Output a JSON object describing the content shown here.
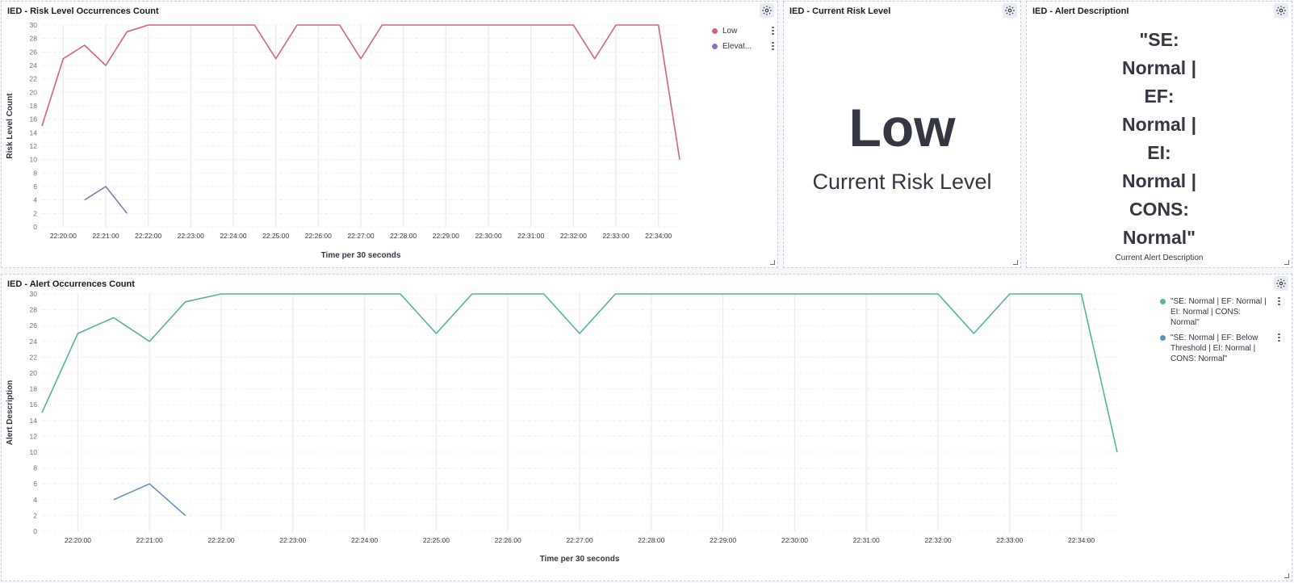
{
  "panels": {
    "risk_chart": {
      "title": "IED - Risk Level Occurrences Count"
    },
    "current_risk": {
      "title": "IED - Current Risk Level",
      "value": "Low",
      "label": "Current Risk Level"
    },
    "alert_desc": {
      "title": "IED - Alert DescriptionI",
      "lines": [
        "\"SE:",
        "Normal |",
        "EF:",
        "Normal |",
        "EI:",
        "Normal |",
        "CONS:",
        "Normal\""
      ],
      "label": "Current Alert Description"
    },
    "alert_chart": {
      "title": "IED - Alert Occurrences Count"
    }
  },
  "icons": {
    "settings": "gear-icon",
    "resize": "resize-handle-icon",
    "legend_options": "vertical-dots-icon"
  },
  "chart_data": [
    {
      "type": "line",
      "x": [
        "22:19:30",
        "22:20:00",
        "22:20:30",
        "22:21:00",
        "22:21:30",
        "22:22:00",
        "22:22:30",
        "22:23:00",
        "22:23:30",
        "22:24:00",
        "22:24:30",
        "22:25:00",
        "22:25:30",
        "22:26:00",
        "22:26:30",
        "22:27:00",
        "22:27:30",
        "22:28:00",
        "22:28:30",
        "22:29:00",
        "22:29:30",
        "22:30:00",
        "22:30:30",
        "22:31:00",
        "22:31:30",
        "22:32:00",
        "22:32:30",
        "22:33:00",
        "22:33:30",
        "22:34:00",
        "22:34:30"
      ],
      "series": [
        {
          "name": "Low",
          "color": "#d36086",
          "values": [
            15,
            25,
            27,
            24,
            29,
            30,
            30,
            30,
            30,
            30,
            30,
            25,
            30,
            30,
            30,
            25,
            30,
            30,
            30,
            30,
            30,
            30,
            30,
            30,
            30,
            30,
            25,
            30,
            30,
            30,
            10
          ]
        },
        {
          "name": "Elevat...",
          "color": "#9170b8",
          "values": [
            null,
            null,
            4,
            6,
            2,
            null,
            null,
            null,
            null,
            null,
            null,
            null,
            null,
            null,
            null,
            null,
            null,
            null,
            null,
            null,
            null,
            null,
            null,
            null,
            null,
            null,
            null,
            null,
            null,
            null,
            null
          ]
        }
      ],
      "xticks": [
        "22:20:00",
        "22:21:00",
        "22:22:00",
        "22:23:00",
        "22:24:00",
        "22:25:00",
        "22:26:00",
        "22:27:00",
        "22:28:00",
        "22:29:00",
        "22:30:00",
        "22:31:00",
        "22:32:00",
        "22:33:00",
        "22:34:00"
      ],
      "yticks": [
        0,
        2,
        4,
        6,
        8,
        10,
        12,
        14,
        16,
        18,
        20,
        22,
        24,
        26,
        28,
        30
      ],
      "ylim": [
        0,
        30
      ],
      "xlabel": "Time per 30 seconds",
      "ylabel": "Risk Level Count",
      "legend": "top-right"
    },
    {
      "type": "line",
      "x": [
        "22:19:30",
        "22:20:00",
        "22:20:30",
        "22:21:00",
        "22:21:30",
        "22:22:00",
        "22:22:30",
        "22:23:00",
        "22:23:30",
        "22:24:00",
        "22:24:30",
        "22:25:00",
        "22:25:30",
        "22:26:00",
        "22:26:30",
        "22:27:00",
        "22:27:30",
        "22:28:00",
        "22:28:30",
        "22:29:00",
        "22:29:30",
        "22:30:00",
        "22:30:30",
        "22:31:00",
        "22:31:30",
        "22:32:00",
        "22:32:30",
        "22:33:00",
        "22:33:30",
        "22:34:00",
        "22:34:30"
      ],
      "series": [
        {
          "name": "\"SE: Normal | EF: Normal | EI: Normal | CONS: Normal\"",
          "color": "#54b399",
          "values": [
            15,
            25,
            27,
            24,
            29,
            30,
            30,
            30,
            30,
            30,
            30,
            25,
            30,
            30,
            30,
            25,
            30,
            30,
            30,
            30,
            30,
            30,
            30,
            30,
            30,
            30,
            25,
            30,
            30,
            30,
            10
          ]
        },
        {
          "name": "\"SE: Normal | EF: Below Threshold | EI: Normal | CONS: Normal\"",
          "color": "#6092c0",
          "values": [
            null,
            null,
            4,
            6,
            2,
            null,
            null,
            null,
            null,
            null,
            null,
            null,
            null,
            null,
            null,
            null,
            null,
            null,
            null,
            null,
            null,
            null,
            null,
            null,
            null,
            null,
            null,
            null,
            null,
            null,
            null
          ]
        }
      ],
      "xticks": [
        "22:20:00",
        "22:21:00",
        "22:22:00",
        "22:23:00",
        "22:24:00",
        "22:25:00",
        "22:26:00",
        "22:27:00",
        "22:28:00",
        "22:29:00",
        "22:30:00",
        "22:31:00",
        "22:32:00",
        "22:33:00",
        "22:34:00"
      ],
      "yticks": [
        0,
        2,
        4,
        6,
        8,
        10,
        12,
        14,
        16,
        18,
        20,
        22,
        24,
        26,
        28,
        30
      ],
      "ylim": [
        0,
        30
      ],
      "xlabel": "Time per 30 seconds",
      "ylabel": "Alert Description",
      "legend": "top-right"
    }
  ]
}
